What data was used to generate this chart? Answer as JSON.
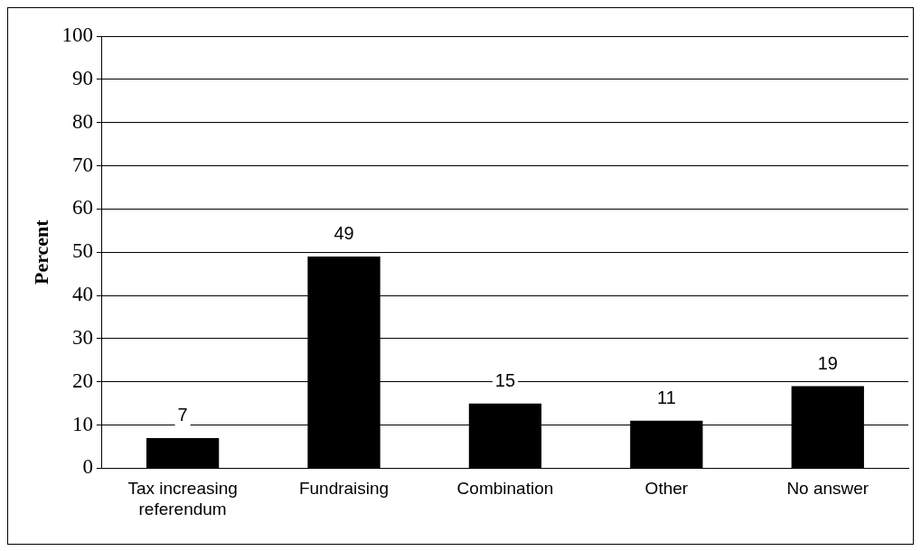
{
  "chart_data": {
    "type": "bar",
    "ylabel": "Percent",
    "categories": [
      "Tax increasing referendum",
      "Fundraising",
      "Combination",
      "Other",
      "No answer"
    ],
    "values": [
      7,
      49,
      15,
      11,
      19
    ],
    "color": "#000000",
    "ylim": [
      0,
      100
    ],
    "yticks": [
      0,
      10,
      20,
      30,
      40,
      50,
      60,
      70,
      80,
      90,
      100
    ],
    "grid": "y",
    "data_labels": true
  }
}
